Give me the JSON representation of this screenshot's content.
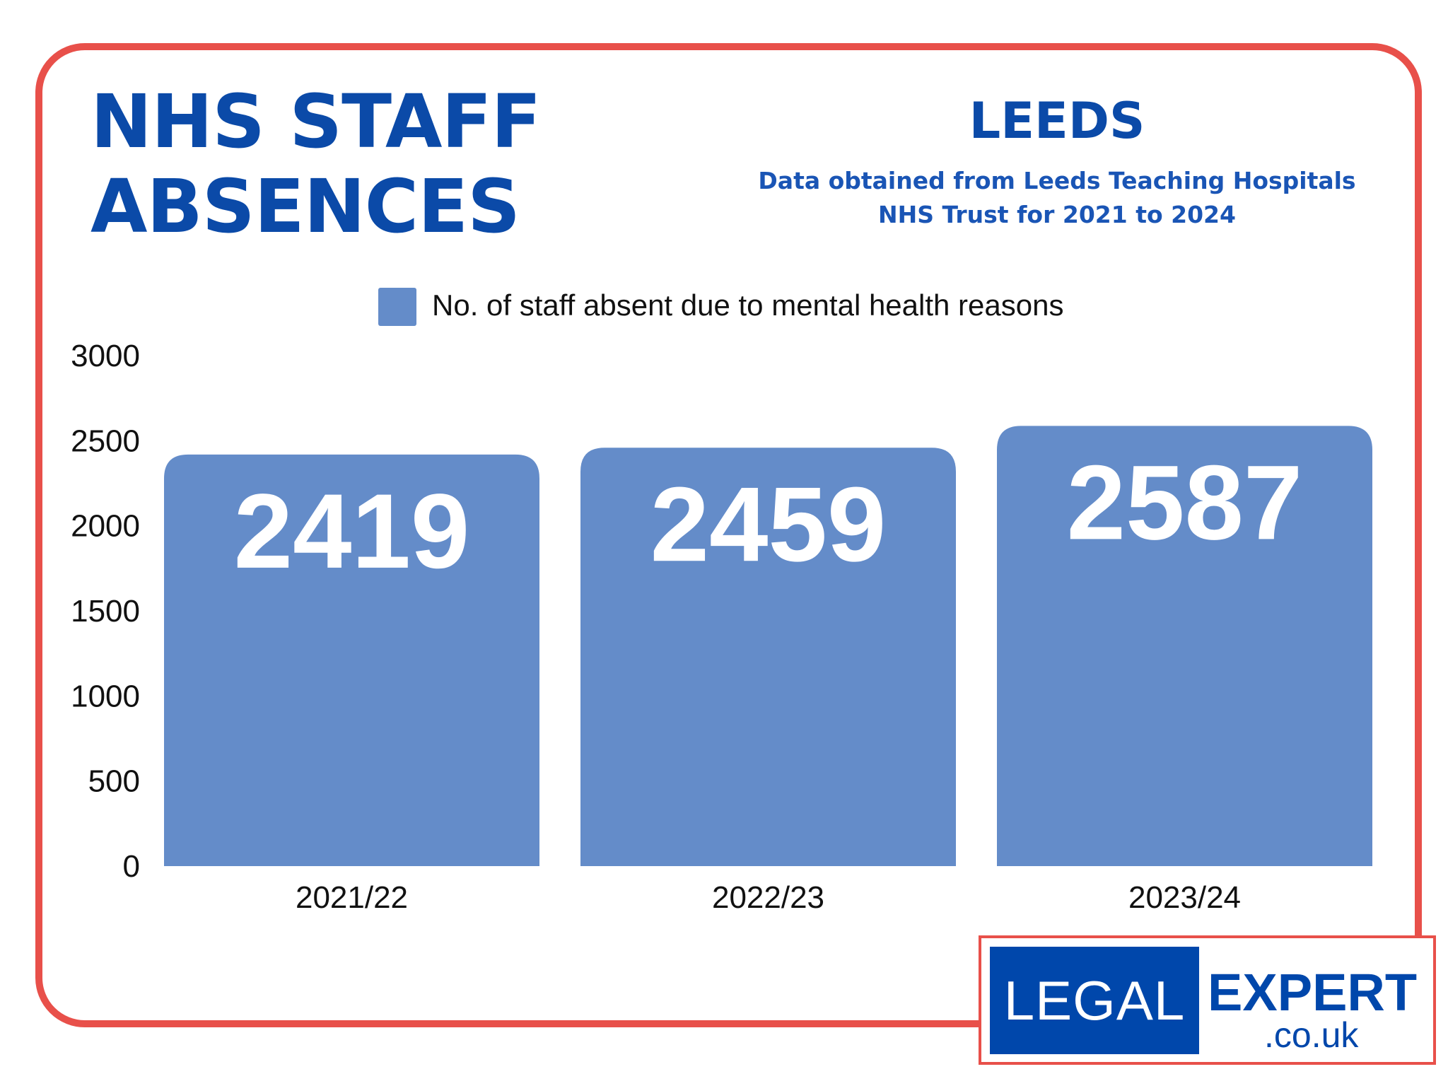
{
  "header": {
    "title_line1": "NHS STAFF",
    "title_line2": "ABSENCES",
    "city": "LEEDS",
    "subtitle": "Data obtained from Leeds Teaching Hospitals NHS Trust for 2021 to 2024"
  },
  "logo": {
    "left": "LEGAL",
    "right": "EXPERT",
    "domain": ".co.uk"
  },
  "colors": {
    "frame": "#e8504a",
    "title": "#0b4aa8",
    "bar": "#648cc9",
    "logo": "#0047ab"
  },
  "chart_data": {
    "type": "bar",
    "title": "",
    "categories": [
      "2021/22",
      "2022/23",
      "2023/24"
    ],
    "series": [
      {
        "name": "No. of staff absent due to mental health reasons",
        "values": [
          2419,
          2459,
          2587
        ]
      }
    ],
    "data_labels": [
      "2419",
      "2459",
      "2587"
    ],
    "xlabel": "",
    "ylabel": "",
    "ylim": [
      0,
      3000
    ],
    "yticks": [
      "0",
      "500",
      "1000",
      "1500",
      "2000",
      "2500",
      "3000"
    ],
    "grid": false,
    "legend": "top-center"
  }
}
